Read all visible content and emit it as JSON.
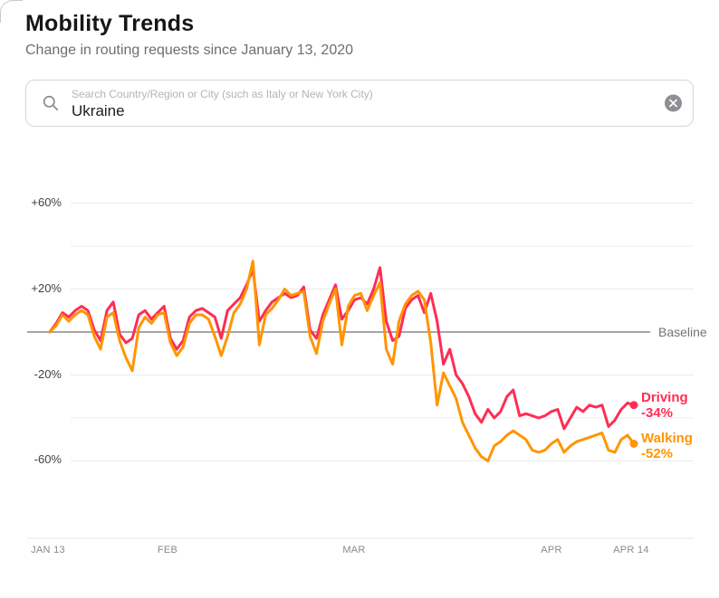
{
  "header": {
    "title": "Mobility Trends",
    "subtitle": "Change in routing requests since January 13, 2020"
  },
  "search": {
    "placeholder": "Search Country/Region or City (such as Italy or New York City)",
    "value": "Ukraine",
    "icons": {
      "left": "search-icon",
      "right": "clear-circle-x-icon"
    }
  },
  "chart_data": {
    "type": "line",
    "title": "Mobility Trends — Ukraine",
    "x_unit": "days since Jan 13, 2020",
    "x_ticks": [
      {
        "label": "JAN 13",
        "day": 0
      },
      {
        "label": "FEB",
        "day": 19
      },
      {
        "label": "MAR",
        "day": 48
      },
      {
        "label": "APR",
        "day": 79
      },
      {
        "label": "APR 14",
        "day": 92
      }
    ],
    "y_ticks": [
      {
        "label": "+60%",
        "value": 60
      },
      {
        "label": "+20%",
        "value": 20
      },
      {
        "label": "-20%",
        "value": -20
      },
      {
        "label": "-60%",
        "value": -60
      }
    ],
    "gridline_values": [
      60,
      40,
      20,
      -20,
      -40,
      -60
    ],
    "ylim": [
      -80,
      70
    ],
    "baseline_value": 0,
    "baseline_label": "Baseline",
    "legend_position": "right-of-line-ends",
    "grid": true,
    "series": [
      {
        "name": "Driving",
        "end_label": "Driving",
        "end_value_label": "-34%",
        "end_value": -34,
        "color": "#FF2D55",
        "values": [
          0,
          4,
          9,
          7,
          10,
          12,
          10,
          1,
          -4,
          10,
          14,
          -1,
          -5,
          -3,
          8,
          10,
          6,
          9,
          12,
          -3,
          -8,
          -4,
          7,
          10,
          11,
          9,
          7,
          -3,
          10,
          13,
          16,
          22,
          29,
          5,
          10,
          14,
          16,
          18,
          16,
          17,
          21,
          1,
          -3,
          8,
          15,
          22,
          6,
          10,
          15,
          16,
          13,
          20,
          30,
          5,
          -4,
          -2,
          11,
          15,
          17,
          9,
          18,
          5,
          -15,
          -8,
          -20,
          -24,
          -30,
          -38,
          -42,
          -36,
          -40,
          -37,
          -30,
          -27,
          -39,
          -38,
          -39,
          -40,
          -39,
          -37,
          -36,
          -45,
          -40,
          -35,
          -37,
          -34,
          -35,
          -34,
          -44,
          -41,
          -36,
          -33,
          -34
        ]
      },
      {
        "name": "Walking",
        "end_label": "Walking",
        "end_value_label": "-52%",
        "end_value": -52,
        "color": "#FF9500",
        "values": [
          0,
          3,
          8,
          5,
          8,
          10,
          8,
          -2,
          -8,
          7,
          9,
          -4,
          -12,
          -18,
          2,
          7,
          4,
          8,
          9,
          -5,
          -11,
          -7,
          4,
          8,
          8,
          6,
          -2,
          -11,
          -2,
          9,
          13,
          20,
          33,
          -6,
          8,
          11,
          15,
          20,
          17,
          18,
          19,
          -2,
          -10,
          5,
          13,
          20,
          -6,
          12,
          17,
          18,
          10,
          17,
          23,
          -8,
          -15,
          5,
          13,
          17,
          19,
          15,
          -5,
          -34,
          -19,
          -25,
          -31,
          -42,
          -48,
          -54,
          -58,
          -60,
          -53,
          -51,
          -48,
          -46,
          -48,
          -50,
          -55,
          -56,
          -55,
          -52,
          -50,
          -56,
          -53,
          -51,
          -50,
          -49,
          -48,
          -47,
          -55,
          -56,
          -50,
          -48,
          -52
        ]
      }
    ],
    "colors": {
      "driving": "#FF2D55",
      "walking": "#FF9500",
      "baseline_line": "#a5a5aa",
      "gridline": "#ececee",
      "axis_line": "#e4e4e7"
    }
  }
}
